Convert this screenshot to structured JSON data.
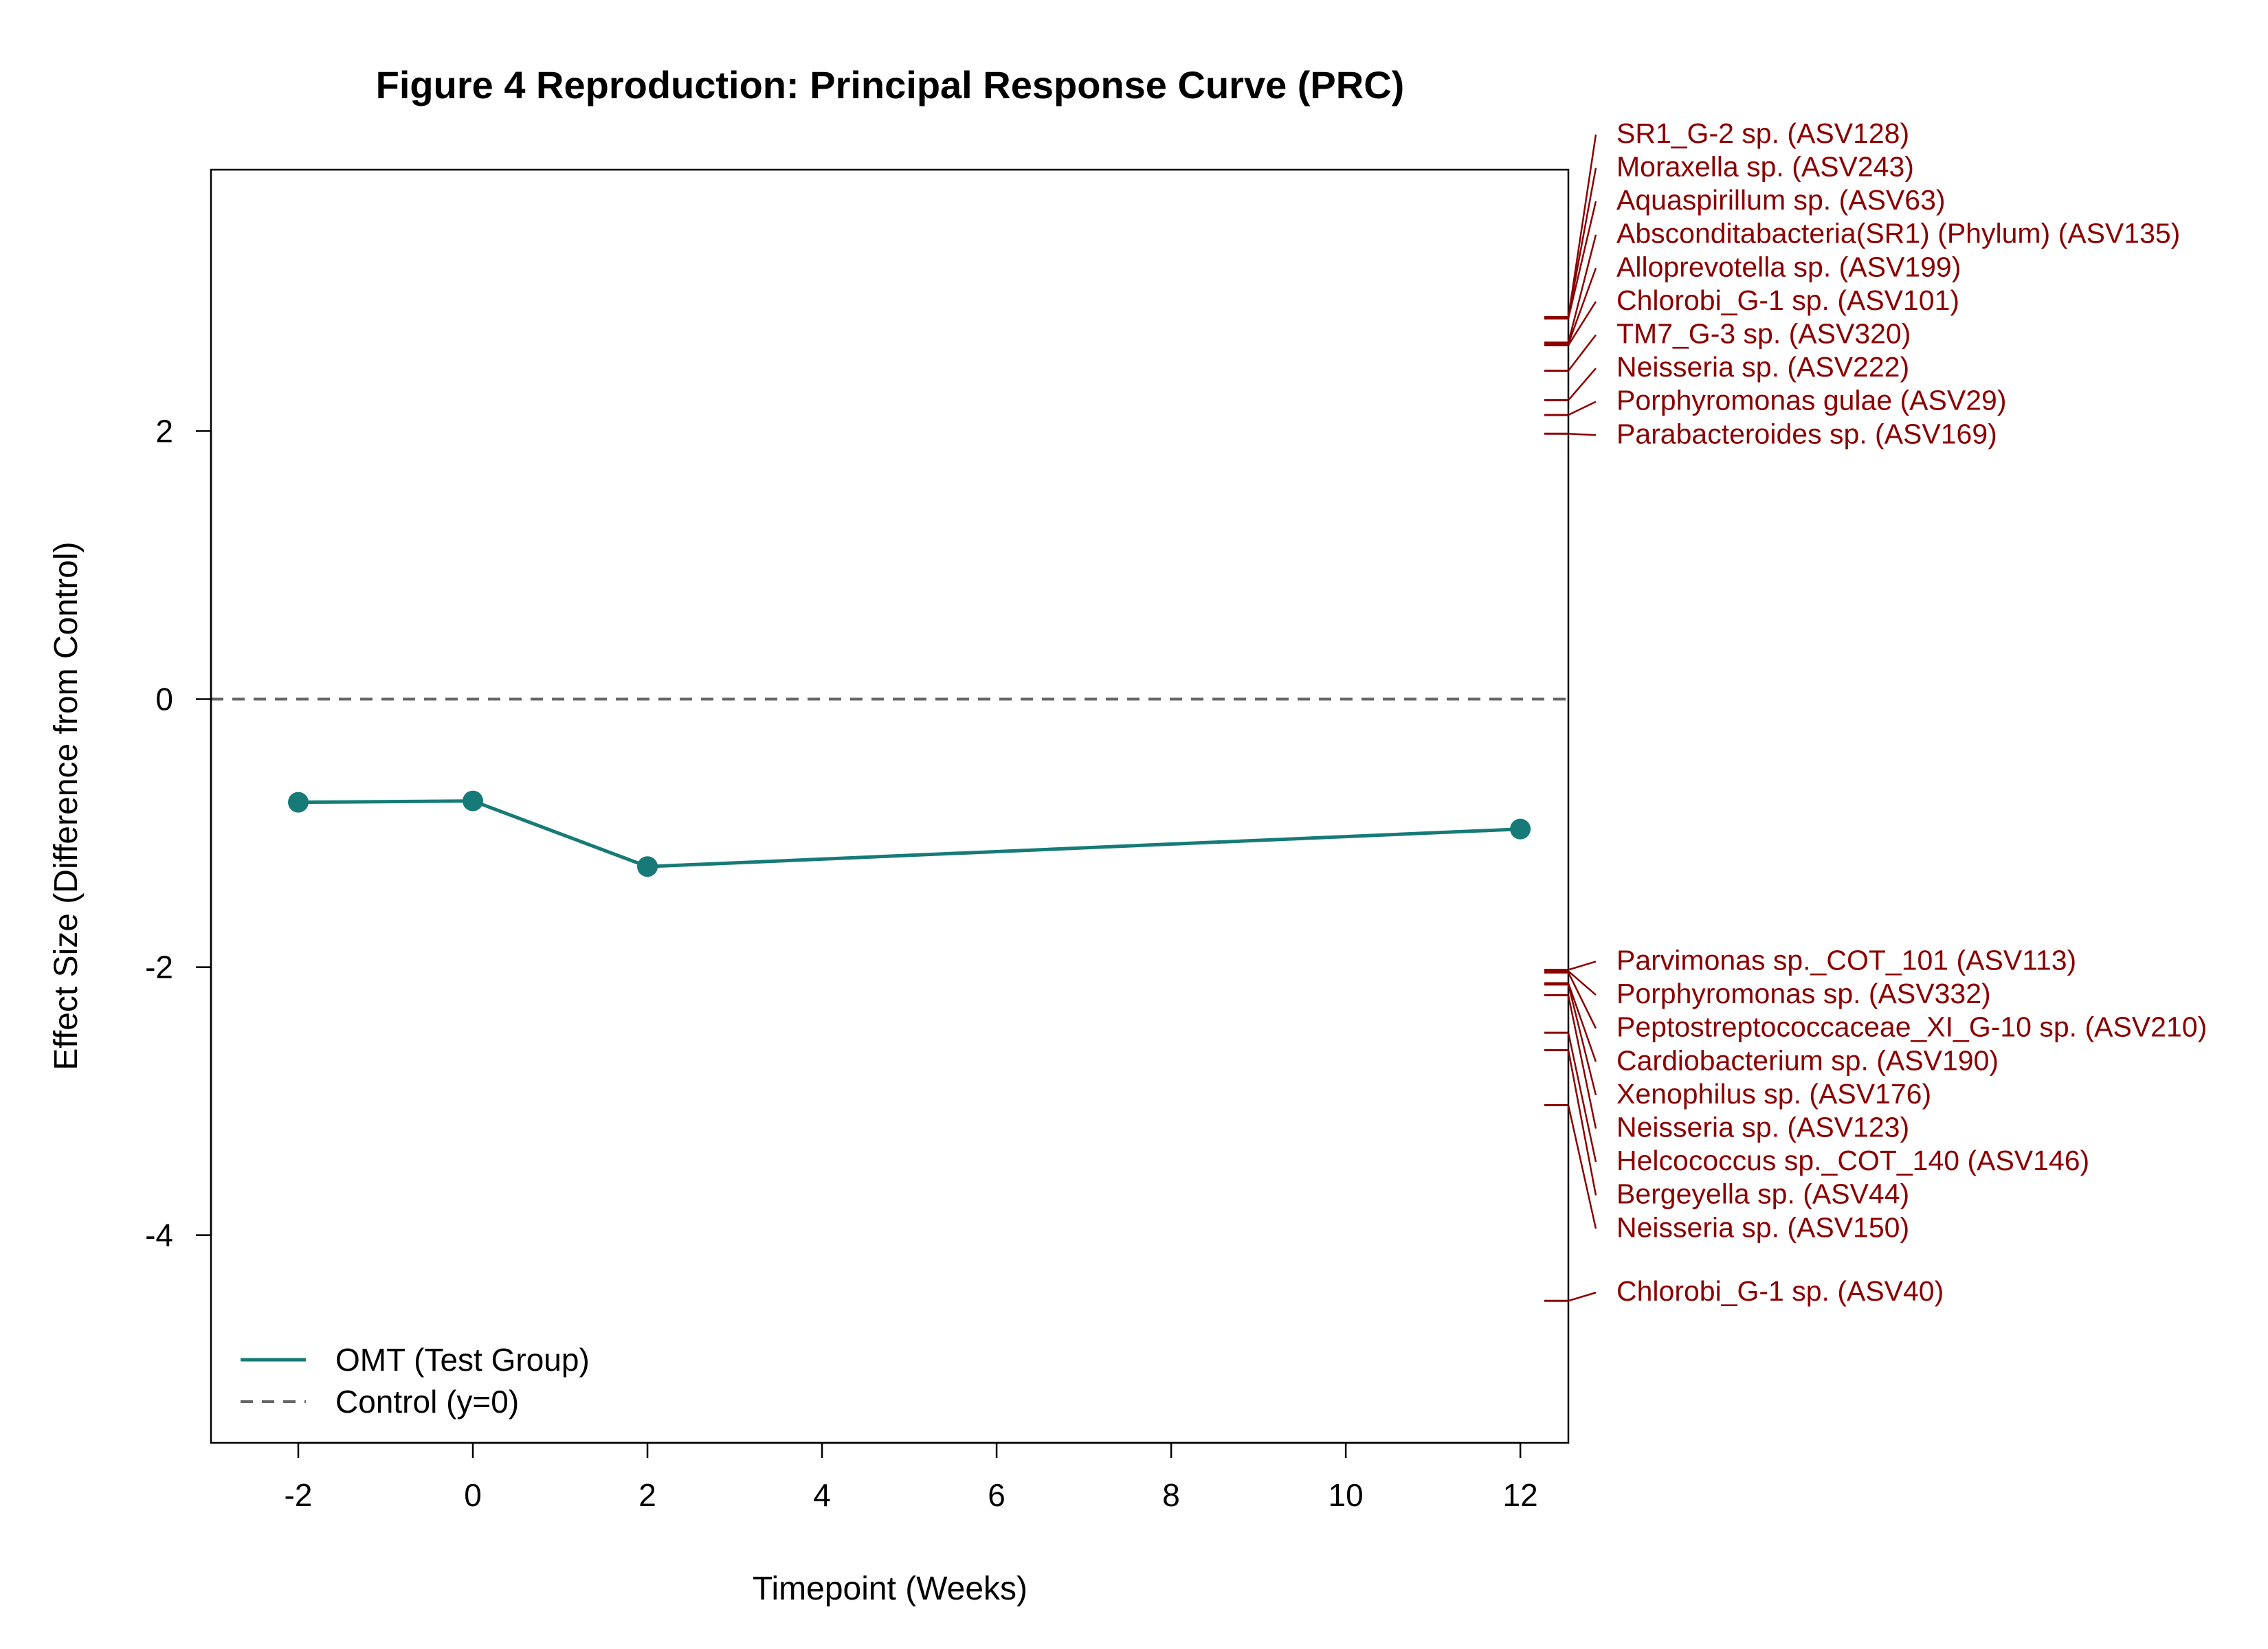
{
  "chart_data": {
    "type": "line",
    "title": "Figure 4 Reproduction: Principal Response Curve (PRC)",
    "xlabel": "Timepoint (Weeks)",
    "ylabel": "Effect Size (Difference from Control)",
    "xlim": [
      -3.0,
      12.55
    ],
    "ylim": [
      -5.55,
      3.95
    ],
    "xticks": [
      -2,
      0,
      2,
      4,
      6,
      8,
      10,
      12
    ],
    "yticks": [
      -4,
      -2,
      0,
      2
    ],
    "grid": false,
    "legend_position": "bottom-left",
    "series": [
      {
        "name": "OMT (Test Group)",
        "color": "#167b78",
        "style": "solid",
        "markers": true,
        "x": [
          -2,
          0,
          2,
          12
        ],
        "y": [
          -0.77,
          -0.76,
          -1.25,
          -0.97
        ]
      },
      {
        "name": "Control (y=0)",
        "color": "#666666",
        "style": "dashed",
        "markers": false,
        "x": [
          -3.0,
          12.55
        ],
        "y": [
          0,
          0
        ]
      }
    ],
    "species": {
      "color": "#8b0000",
      "items": [
        {
          "label": "SR1_G-2 sp. (ASV128)",
          "score": 2.85
        },
        {
          "label": "Moraxella sp. (ASV243)",
          "score": 2.85
        },
        {
          "label": "Aquaspirillum sp. (ASV63)",
          "score": 2.84
        },
        {
          "label": "Absconditabacteria(SR1) (Phylum) (ASV135)",
          "score": 2.66
        },
        {
          "label": "Alloprevotella sp. (ASV199)",
          "score": 2.65
        },
        {
          "label": "Chlorobi_G-1 sp. (ASV101)",
          "score": 2.64
        },
        {
          "label": "TM7_G-3 sp. (ASV320)",
          "score": 2.45
        },
        {
          "label": "Neisseria sp. (ASV222)",
          "score": 2.23
        },
        {
          "label": "Porphyromonas gulae (ASV29)",
          "score": 2.12
        },
        {
          "label": "Parabacteroides sp. (ASV169)",
          "score": 1.98
        },
        {
          "label": "Parvimonas sp._COT_101 (ASV113)",
          "score": -2.02
        },
        {
          "label": "Porphyromonas sp. (ASV332)",
          "score": -2.03
        },
        {
          "label": "Peptostreptococcaceae_XI_G-10 sp. (ASV210)",
          "score": -2.04
        },
        {
          "label": "Cardiobacterium sp. (ASV190)",
          "score": -2.12
        },
        {
          "label": "Xenophilus sp. (ASV176)",
          "score": -2.13
        },
        {
          "label": "Neisseria sp. (ASV123)",
          "score": -2.21
        },
        {
          "label": "Helcococcus sp._COT_140 (ASV146)",
          "score": -2.49
        },
        {
          "label": "Bergeyella sp. (ASV44)",
          "score": -2.62
        },
        {
          "label": "Neisseria sp. (ASV150)",
          "score": -3.03
        },
        {
          "label": "Chlorobi_G-1 sp. (ASV40)",
          "score": -4.49
        }
      ]
    }
  }
}
